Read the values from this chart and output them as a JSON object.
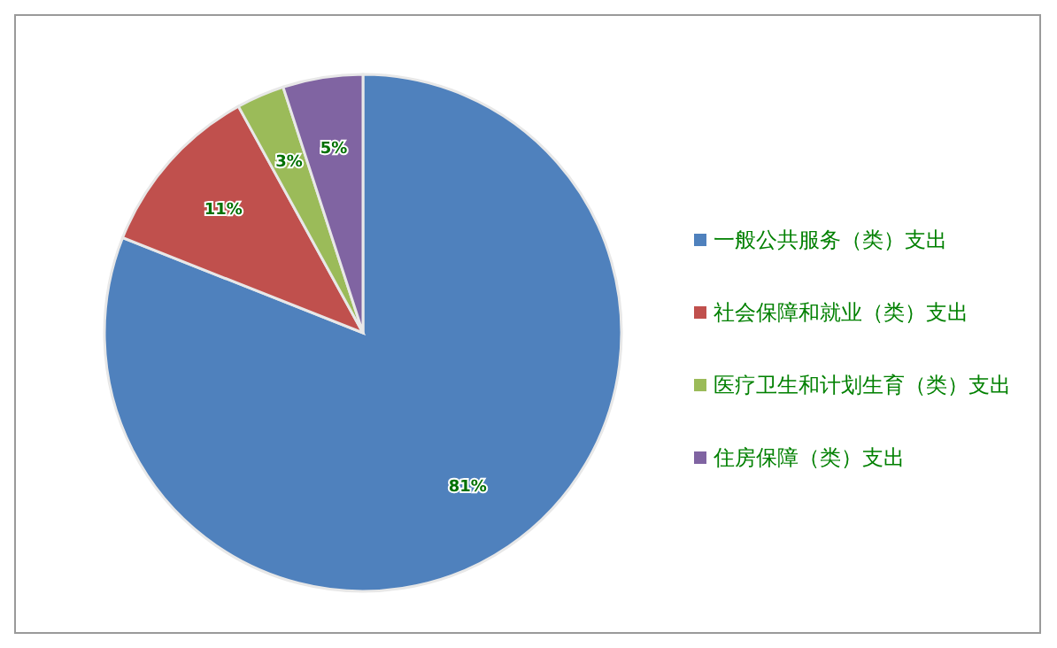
{
  "chart_data": {
    "type": "pie",
    "categories": [
      "一般公共服务（类）支出",
      "社会保障和就业（类）支出",
      "医疗卫生和计划生育（类）支出",
      "住房保障（类）支出"
    ],
    "values": [
      81,
      11,
      3,
      5
    ],
    "colors": [
      "#4f81bd",
      "#c0504d",
      "#9bbb59",
      "#8064a2"
    ],
    "value_labels": [
      "81%",
      "11%",
      "3%",
      "5%"
    ],
    "legend": "right"
  }
}
